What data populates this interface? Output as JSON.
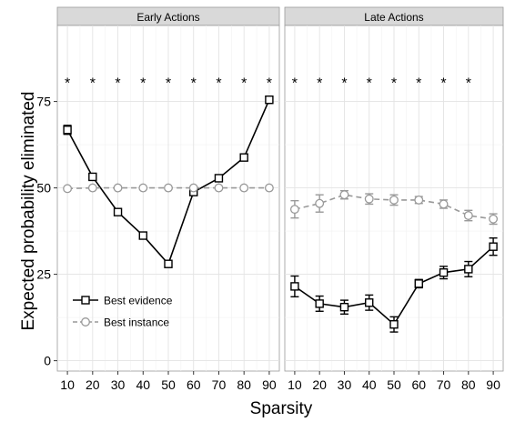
{
  "chart_data": {
    "type": "line",
    "xlabel": "Sparsity",
    "ylabel": "Expected probability eliminated",
    "x": [
      10,
      20,
      30,
      40,
      50,
      60,
      70,
      80,
      90
    ],
    "xticks": [
      "10",
      "20",
      "30",
      "40",
      "50",
      "60",
      "70",
      "80",
      "90"
    ],
    "ylim": [
      -3,
      97
    ],
    "yticks": [
      0,
      25,
      50,
      75
    ],
    "grid": true,
    "legend": {
      "position": "bottom-left",
      "panel": 0
    },
    "series_styles": {
      "Best evidence": {
        "color": "#000000",
        "marker": "square",
        "dash": "solid"
      },
      "Best instance": {
        "color": "#999999",
        "marker": "circle",
        "dash": "dashed"
      }
    },
    "panels": [
      {
        "title": "Early Actions",
        "significance_marker": "*",
        "significant_x": [
          10,
          20,
          30,
          40,
          50,
          60,
          70,
          80,
          90
        ],
        "series": [
          {
            "name": "Best evidence",
            "values": [
              66.8,
              53.2,
              43.0,
              36.2,
              28.0,
              48.8,
              52.8,
              58.8,
              75.5
            ],
            "err": [
              1.3,
              0.9,
              0.9,
              0.9,
              1.0,
              0.9,
              0.9,
              0.9,
              1.0
            ]
          },
          {
            "name": "Best instance",
            "values": [
              49.8,
              50.0,
              50.0,
              50.0,
              50.0,
              50.0,
              50.0,
              50.0,
              50.0
            ],
            "err": [
              0,
              0,
              0,
              0,
              0,
              0,
              0,
              0,
              0
            ]
          }
        ]
      },
      {
        "title": "Late Actions",
        "significance_marker": "*",
        "significant_x": [
          10,
          20,
          30,
          40,
          50,
          60,
          70,
          80
        ],
        "series": [
          {
            "name": "Best evidence",
            "values": [
              21.5,
              16.5,
              15.5,
              16.8,
              10.5,
              22.3,
              25.5,
              26.5,
              33.0
            ],
            "err": [
              3.0,
              2.2,
              2.0,
              2.2,
              2.2,
              1.2,
              1.8,
              2.2,
              2.5
            ]
          },
          {
            "name": "Best instance",
            "values": [
              43.8,
              45.5,
              48.0,
              46.8,
              46.5,
              46.5,
              45.3,
              42.0,
              41.0
            ],
            "err": [
              2.5,
              2.5,
              1.2,
              1.5,
              1.5,
              1.0,
              1.2,
              1.5,
              1.5
            ]
          }
        ]
      }
    ]
  }
}
